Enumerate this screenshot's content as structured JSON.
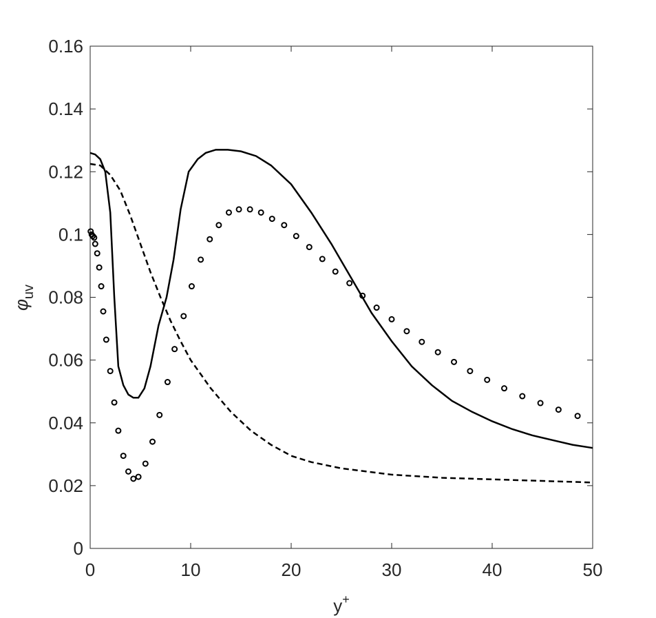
{
  "chart_data": {
    "type": "line",
    "xlabel": {
      "base": "y",
      "sup": "+"
    },
    "ylabel": {
      "symbol": "φ",
      "sub": "uv"
    },
    "xlim": [
      0,
      50
    ],
    "xticks": [
      0,
      10,
      20,
      30,
      40,
      50
    ],
    "ylim": [
      0,
      0.16
    ],
    "yticks": [
      0,
      0.02,
      0.04,
      0.06,
      0.08,
      {
        "value": 0.1,
        "label": "0.1"
      },
      0.12,
      0.14,
      0.16
    ],
    "grid": false,
    "series": [
      {
        "style": "solid",
        "color": "#000000",
        "x": [
          0,
          0.5,
          1,
          1.5,
          2,
          2.4,
          2.8,
          3.3,
          3.8,
          4.3,
          4.8,
          5.4,
          6,
          6.8,
          7.6,
          8.3,
          9,
          9.8,
          10.7,
          11.5,
          12.5,
          13.7,
          15,
          16.5,
          18,
          20,
          22,
          24,
          26,
          28,
          30,
          32,
          34,
          36,
          38,
          40,
          42,
          44,
          46,
          48,
          50
        ],
        "values": [
          0.126,
          0.1255,
          0.124,
          0.12,
          0.107,
          0.08,
          0.058,
          0.052,
          0.049,
          0.048,
          0.048,
          0.051,
          0.058,
          0.071,
          0.08,
          0.092,
          0.108,
          0.12,
          0.124,
          0.126,
          0.127,
          0.127,
          0.1265,
          0.125,
          0.122,
          0.116,
          0.107,
          0.097,
          0.086,
          0.075,
          0.066,
          0.058,
          0.052,
          0.047,
          0.0435,
          0.0405,
          0.038,
          0.036,
          0.0345,
          0.033,
          0.032
        ]
      },
      {
        "style": "dashed",
        "color": "#000000",
        "x": [
          0,
          1,
          2,
          3,
          4,
          5,
          6,
          7,
          8,
          9,
          10,
          12,
          14,
          16,
          18,
          20,
          22,
          25,
          30,
          35,
          40,
          45,
          50
        ],
        "values": [
          0.1225,
          0.122,
          0.119,
          0.114,
          0.106,
          0.097,
          0.088,
          0.08,
          0.0725,
          0.066,
          0.06,
          0.051,
          0.0435,
          0.0375,
          0.033,
          0.0295,
          0.0275,
          0.0255,
          0.0235,
          0.0225,
          0.022,
          0.0215,
          0.021
        ]
      },
      {
        "style": "markers",
        "color": "#000000",
        "x": [
          0.05,
          0.15,
          0.25,
          0.4,
          0.5,
          0.7,
          0.9,
          1.1,
          1.3,
          1.6,
          2.0,
          2.4,
          2.8,
          3.3,
          3.8,
          4.3,
          4.8,
          5.5,
          6.2,
          6.9,
          7.7,
          8.4,
          9.3,
          10.1,
          11,
          11.9,
          12.8,
          13.8,
          14.8,
          15.9,
          17,
          18.1,
          19.3,
          20.5,
          21.8,
          23.1,
          24.4,
          25.8,
          27.1,
          28.5,
          30,
          31.5,
          33,
          34.6,
          36.2,
          37.8,
          39.5,
          41.2,
          43,
          44.8,
          46.6,
          48.5
        ],
        "values": [
          0.101,
          0.1,
          0.0995,
          0.099,
          0.097,
          0.094,
          0.0895,
          0.0835,
          0.0755,
          0.0665,
          0.0565,
          0.0465,
          0.0375,
          0.0295,
          0.0245,
          0.0222,
          0.0228,
          0.027,
          0.034,
          0.0425,
          0.053,
          0.0635,
          0.074,
          0.0835,
          0.092,
          0.0985,
          0.103,
          0.107,
          0.108,
          0.108,
          0.107,
          0.105,
          0.103,
          0.0995,
          0.096,
          0.0922,
          0.0882,
          0.0845,
          0.0805,
          0.0767,
          0.073,
          0.0692,
          0.0658,
          0.0625,
          0.0594,
          0.0565,
          0.0537,
          0.051,
          0.0485,
          0.0463,
          0.0442,
          0.0422
        ]
      }
    ]
  }
}
